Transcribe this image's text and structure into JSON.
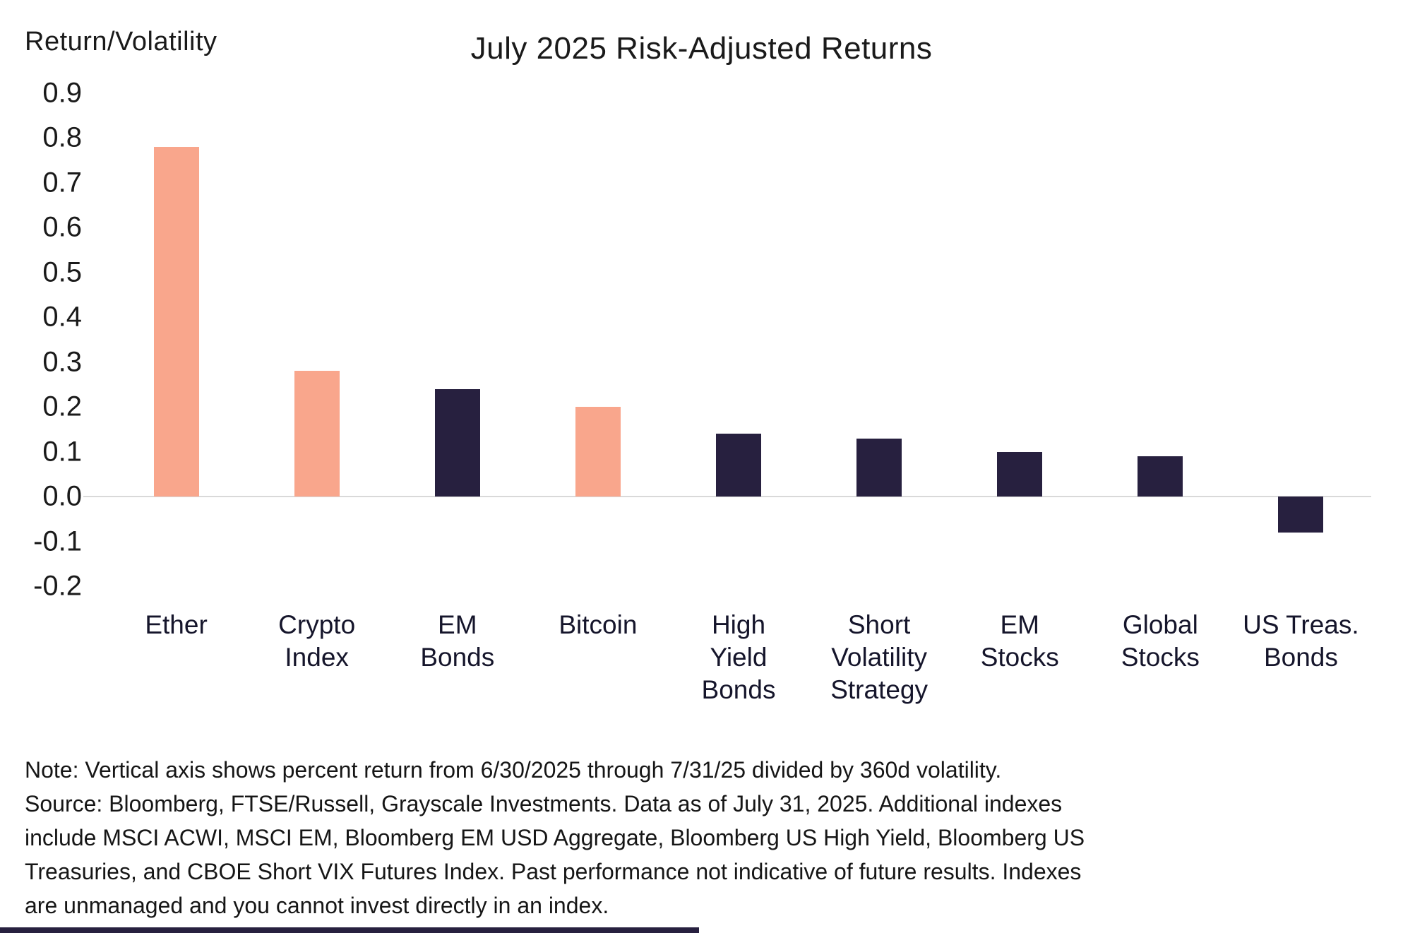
{
  "header": {
    "y_axis_title": "Return/Volatility",
    "title": "July 2025 Risk-Adjusted Returns"
  },
  "chart_data": {
    "type": "bar",
    "title": "July 2025 Risk-Adjusted Returns",
    "xlabel": "",
    "ylabel": "Return/Volatility",
    "ylim": [
      -0.2,
      0.9
    ],
    "yticks": [
      "0.9",
      "0.8",
      "0.7",
      "0.6",
      "0.5",
      "0.4",
      "0.3",
      "0.2",
      "0.1",
      "0.0",
      "-0.1",
      "-0.2"
    ],
    "categories": [
      "Ether",
      "Crypto Index",
      "EM Bonds",
      "Bitcoin",
      "High Yield Bonds",
      "Short Volatility Strategy",
      "EM Stocks",
      "Global Stocks",
      "US Treas. Bonds"
    ],
    "category_lines": [
      [
        "Ether"
      ],
      [
        "Crypto",
        "Index"
      ],
      [
        "EM",
        "Bonds"
      ],
      [
        "Bitcoin"
      ],
      [
        "High",
        "Yield",
        "Bonds"
      ],
      [
        "Short",
        "Volatility",
        "Strategy"
      ],
      [
        "EM",
        "Stocks"
      ],
      [
        "Global",
        "Stocks"
      ],
      [
        "US Treas.",
        "Bonds"
      ]
    ],
    "values": [
      0.78,
      0.28,
      0.24,
      0.2,
      0.14,
      0.13,
      0.1,
      0.09,
      -0.08
    ],
    "bar_colors": [
      "salmon",
      "salmon",
      "navy",
      "salmon",
      "navy",
      "navy",
      "navy",
      "navy",
      "navy"
    ],
    "palette": {
      "salmon": "#F9A68C",
      "navy": "#27203F"
    },
    "grid": "zero-baseline-only",
    "legend": "none"
  },
  "note": {
    "lines": [
      "Note: Vertical axis shows percent return from 6/30/2025 through 7/31/25 divided by 360d volatility.",
      "Source: Bloomberg, FTSE/Russell, Grayscale Investments. Data as of July 31, 2025. Additional indexes",
      "include MSCI ACWI, MSCI EM, Bloomberg EM USD Aggregate, Bloomberg US High Yield, Bloomberg US",
      "Treasuries, and CBOE Short VIX Futures Index. Past performance not indicative of future results. Indexes",
      "are unmanaged and you cannot invest directly in an index."
    ]
  }
}
